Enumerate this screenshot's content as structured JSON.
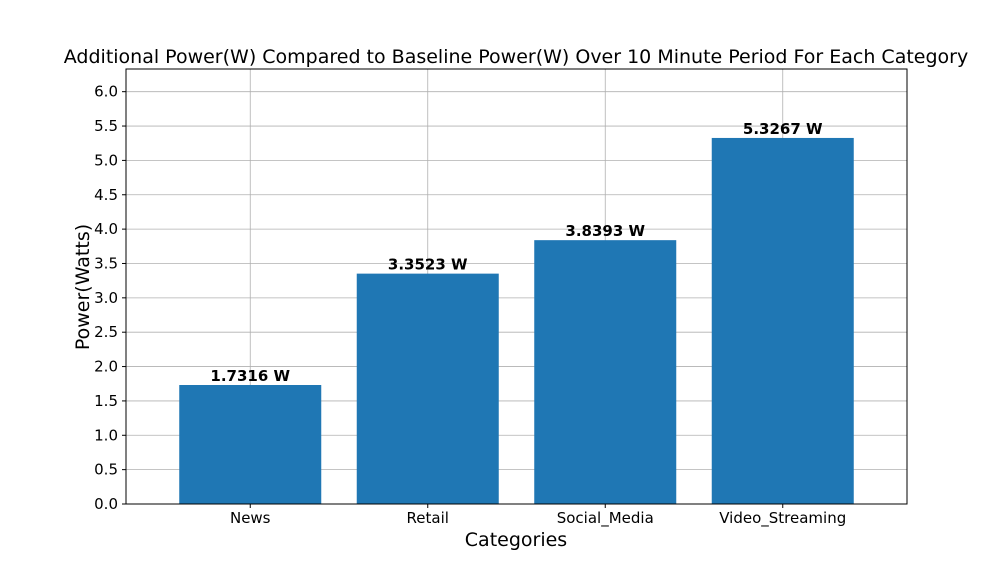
{
  "chart_data": {
    "type": "bar",
    "title": "Additional Power(W) Compared to Baseline Power(W) Over 10 Minute Period For Each Category",
    "xlabel": "Categories",
    "ylabel": "Power(Watts)",
    "categories": [
      "News",
      "Retail",
      "Social_Media",
      "Video_Streaming"
    ],
    "values": [
      1.7316,
      3.3523,
      3.8393,
      5.3267
    ],
    "data_labels": [
      "1.7316 W",
      "3.3523 W",
      "3.8393 W",
      "5.3267 W"
    ],
    "ylim": [
      0,
      6.33
    ],
    "yticks": [
      "0.0",
      "0.5",
      "1.0",
      "1.5",
      "2.0",
      "2.5",
      "3.0",
      "3.5",
      "4.0",
      "4.5",
      "5.0",
      "5.5",
      "6.0"
    ],
    "grid": true,
    "bar_color": "#1f77b4"
  }
}
